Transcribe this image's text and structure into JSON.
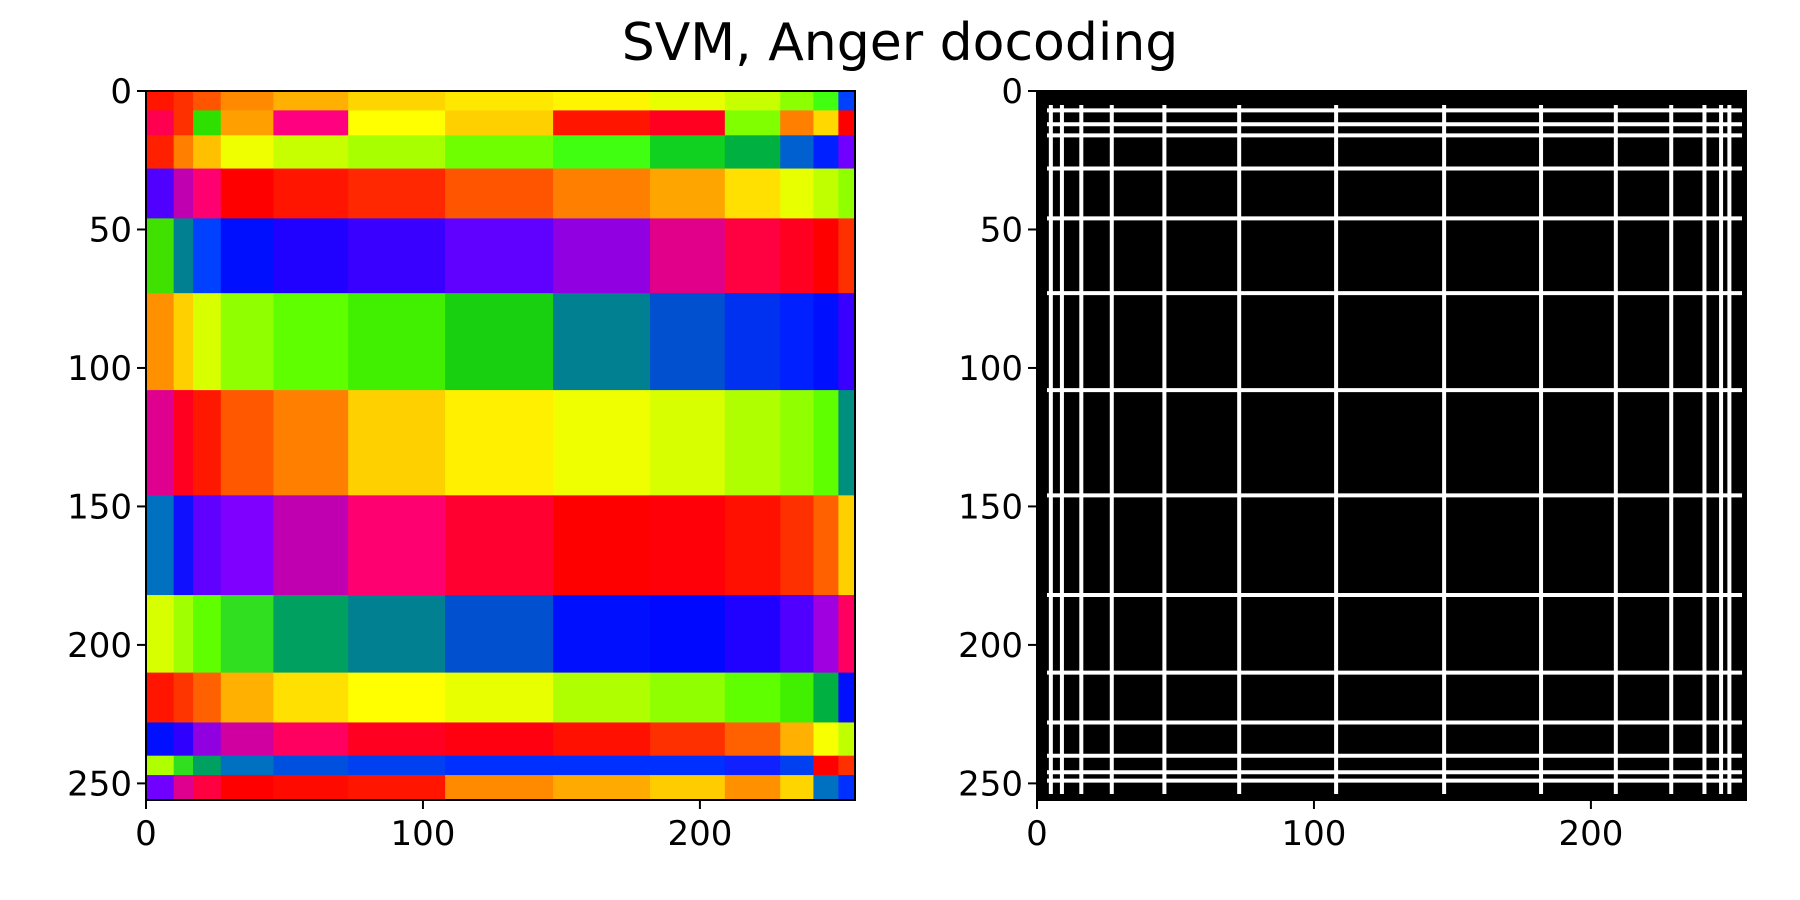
{
  "title": "SVM, Anger docoding",
  "chart_data": [
    {
      "type": "heatmap",
      "panel": "left",
      "colormap": "hsv",
      "xlim": [
        0,
        256
      ],
      "ylim": [
        256,
        0
      ],
      "xticks": [
        0,
        100,
        200
      ],
      "yticks": [
        0,
        50,
        100,
        150,
        200,
        250
      ],
      "col_edges": [
        0,
        10,
        17,
        27,
        46,
        73,
        108,
        147,
        182,
        209,
        229,
        241,
        250,
        256
      ],
      "rows": [
        {
          "y": [
            0,
            7
          ],
          "colors": [
            "#ff1500",
            "#ff3000",
            "#ff5500",
            "#ff8a00",
            "#ffb000",
            "#ffd500",
            "#ffe800",
            "#fff500",
            "#e8ff00",
            "#c8ff00",
            "#8cff00",
            "#40ff10",
            "#0040ff"
          ]
        },
        {
          "y": [
            7,
            16
          ],
          "colors": [
            "#ff0050",
            "#ff3000",
            "#2ee000",
            "#ffa000",
            "#ff0080",
            "#ffff00",
            "#ffd000",
            "#ff1500",
            "#ff0020",
            "#80ff00",
            "#ff8000",
            "#ffd800",
            "#ff0000"
          ]
        },
        {
          "y": [
            16,
            28
          ],
          "colors": [
            "#ff2000",
            "#ff8000",
            "#ffc000",
            "#f0ff00",
            "#c8ff00",
            "#a8ff00",
            "#70ff00",
            "#40ff10",
            "#10d020",
            "#00b040",
            "#0060d0",
            "#0020ff",
            "#7000ff"
          ]
        },
        {
          "y": [
            28,
            46
          ],
          "colors": [
            "#5000ff",
            "#c000b0",
            "#ff0070",
            "#ff0000",
            "#ff1500",
            "#ff2800",
            "#ff5500",
            "#ff8000",
            "#ffa500",
            "#ffe000",
            "#e8ff00",
            "#c0ff00",
            "#90ff00"
          ]
        },
        {
          "y": [
            46,
            73
          ],
          "colors": [
            "#40e000",
            "#008090",
            "#0040ff",
            "#0010ff",
            "#2000ff",
            "#3a00ff",
            "#6000ff",
            "#9000e0",
            "#e0008a",
            "#ff0040",
            "#ff0020",
            "#ff0000",
            "#ff3000"
          ]
        },
        {
          "y": [
            73,
            108
          ],
          "colors": [
            "#ff9000",
            "#ffd000",
            "#d8ff00",
            "#90ff00",
            "#60ff00",
            "#40f000",
            "#18d010",
            "#008090",
            "#0050d0",
            "#0030f0",
            "#0020ff",
            "#0010ff",
            "#3a00ff"
          ]
        },
        {
          "y": [
            108,
            146
          ],
          "colors": [
            "#e00090",
            "#ff0020",
            "#ff1800",
            "#ff5800",
            "#ff8000",
            "#ffd000",
            "#fff000",
            "#f0ff00",
            "#d8ff00",
            "#b0ff00",
            "#90ff00",
            "#60ff00",
            "#008f7f"
          ]
        },
        {
          "y": [
            146,
            182
          ],
          "colors": [
            "#0070c0",
            "#1010ff",
            "#6000ff",
            "#8000ff",
            "#c000b0",
            "#ff0070",
            "#ff0030",
            "#ff0000",
            "#ff0008",
            "#ff1000",
            "#ff3000",
            "#ff6000",
            "#ffd000"
          ]
        },
        {
          "y": [
            182,
            210
          ],
          "colors": [
            "#d8ff00",
            "#a0ff00",
            "#60ff00",
            "#30e020",
            "#00a060",
            "#008090",
            "#0050d0",
            "#0010ff",
            "#0008ff",
            "#2000ff",
            "#5000ff",
            "#a000e0",
            "#ff0060"
          ]
        },
        {
          "y": [
            210,
            228
          ],
          "colors": [
            "#ff1500",
            "#ff3500",
            "#ff6000",
            "#ffb000",
            "#ffe000",
            "#ffff00",
            "#e8ff00",
            "#b0ff00",
            "#90ff00",
            "#60ff00",
            "#40f000",
            "#00b040",
            "#0010ff"
          ]
        },
        {
          "y": [
            228,
            240
          ],
          "colors": [
            "#0010ff",
            "#3000ff",
            "#9000e0",
            "#d000a0",
            "#ff0060",
            "#ff0020",
            "#ff0010",
            "#ff1000",
            "#ff3000",
            "#ff6000",
            "#ffb000",
            "#f8ff00",
            "#c0ff00"
          ]
        },
        {
          "y": [
            240,
            247
          ],
          "colors": [
            "#b0ff00",
            "#30e020",
            "#00a060",
            "#0070c0",
            "#0050e0",
            "#0040f0",
            "#0030ff",
            "#0030ff",
            "#0030ff",
            "#1020ff",
            "#0040f0",
            "#ff0000",
            "#ff3000"
          ]
        },
        {
          "y": [
            247,
            256
          ],
          "colors": [
            "#7000ff",
            "#e00090",
            "#ff0040",
            "#ff0000",
            "#ff0a00",
            "#ff1500",
            "#ff8a00",
            "#ffaa00",
            "#ffcc00",
            "#ff9000",
            "#ffd500",
            "#0070c0",
            "#0030ff"
          ]
        }
      ]
    },
    {
      "type": "heatmap",
      "panel": "right",
      "colormap": "gray (binary)",
      "xlim": [
        0,
        256
      ],
      "ylim": [
        256,
        0
      ],
      "xticks": [
        0,
        100,
        200
      ],
      "yticks": [
        0,
        50,
        100,
        150,
        200,
        250
      ],
      "vertical_lines_x": [
        5,
        9,
        16,
        27,
        46,
        73,
        108,
        147,
        182,
        209,
        229,
        241,
        247,
        250
      ],
      "horizontal_lines_y": [
        7,
        12,
        16,
        28,
        46,
        73,
        108,
        146,
        182,
        210,
        228,
        240,
        246,
        249
      ]
    }
  ]
}
